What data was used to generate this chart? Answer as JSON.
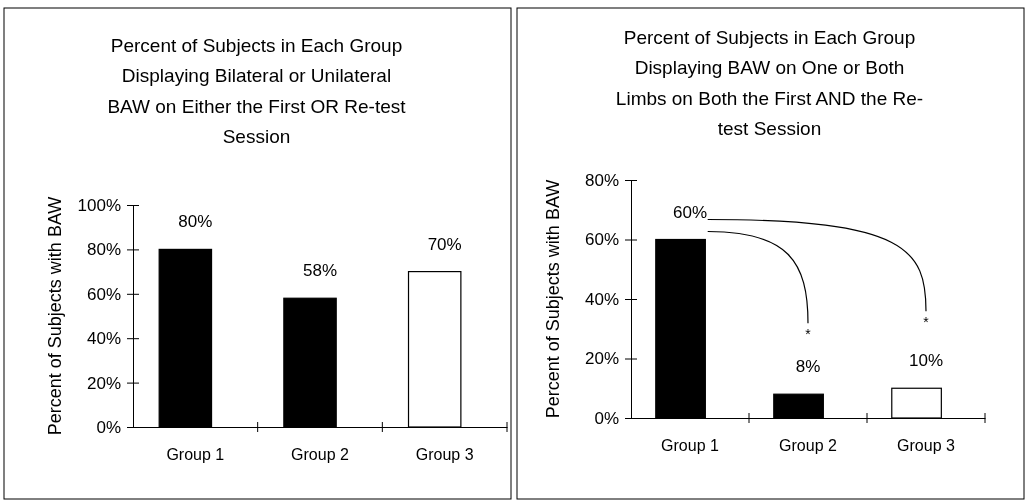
{
  "chart_data": [
    {
      "type": "bar",
      "title": "Percent of Subjects in Each Group\nDisplaying Bilateral or Unilateral\nBAW on Either the First OR Re-test\nSession",
      "ylabel": "Percent of Subjects with BAW",
      "categories": [
        "Group 1",
        "Group 2",
        "Group 3"
      ],
      "values": [
        80,
        58,
        70
      ],
      "colors": [
        "#000000",
        "#000000",
        "#ffffff"
      ],
      "value_labels": [
        "80%",
        "58%",
        "70%"
      ],
      "ylim": [
        0,
        100
      ],
      "yticks": [
        {
          "value": 0,
          "label": "0%"
        },
        {
          "value": 20,
          "label": "20%"
        },
        {
          "value": 40,
          "label": "40%"
        },
        {
          "value": 60,
          "label": "60%"
        },
        {
          "value": 80,
          "label": "80%"
        },
        {
          "value": 100,
          "label": "100%"
        }
      ],
      "grid": false
    },
    {
      "type": "bar",
      "title": "Percent of Subjects in Each Group\nDisplaying BAW on One or Both\nLimbs on Both the First AND the Re-\ntest Session",
      "ylabel": "Percent of Subjects with BAW",
      "categories": [
        "Group 1",
        "Group 2",
        "Group 3"
      ],
      "values": [
        60,
        8,
        10
      ],
      "colors": [
        "#000000",
        "#000000",
        "#ffffff"
      ],
      "value_labels": [
        "60%",
        "8%",
        "10%"
      ],
      "ylim": [
        0,
        80
      ],
      "yticks": [
        {
          "value": 0,
          "label": "0%"
        },
        {
          "value": 20,
          "label": "20%"
        },
        {
          "value": 40,
          "label": "40%"
        },
        {
          "value": 60,
          "label": "60%"
        },
        {
          "value": 80,
          "label": "80%"
        }
      ],
      "grid": false,
      "annotations": [
        "*",
        "*"
      ]
    }
  ]
}
